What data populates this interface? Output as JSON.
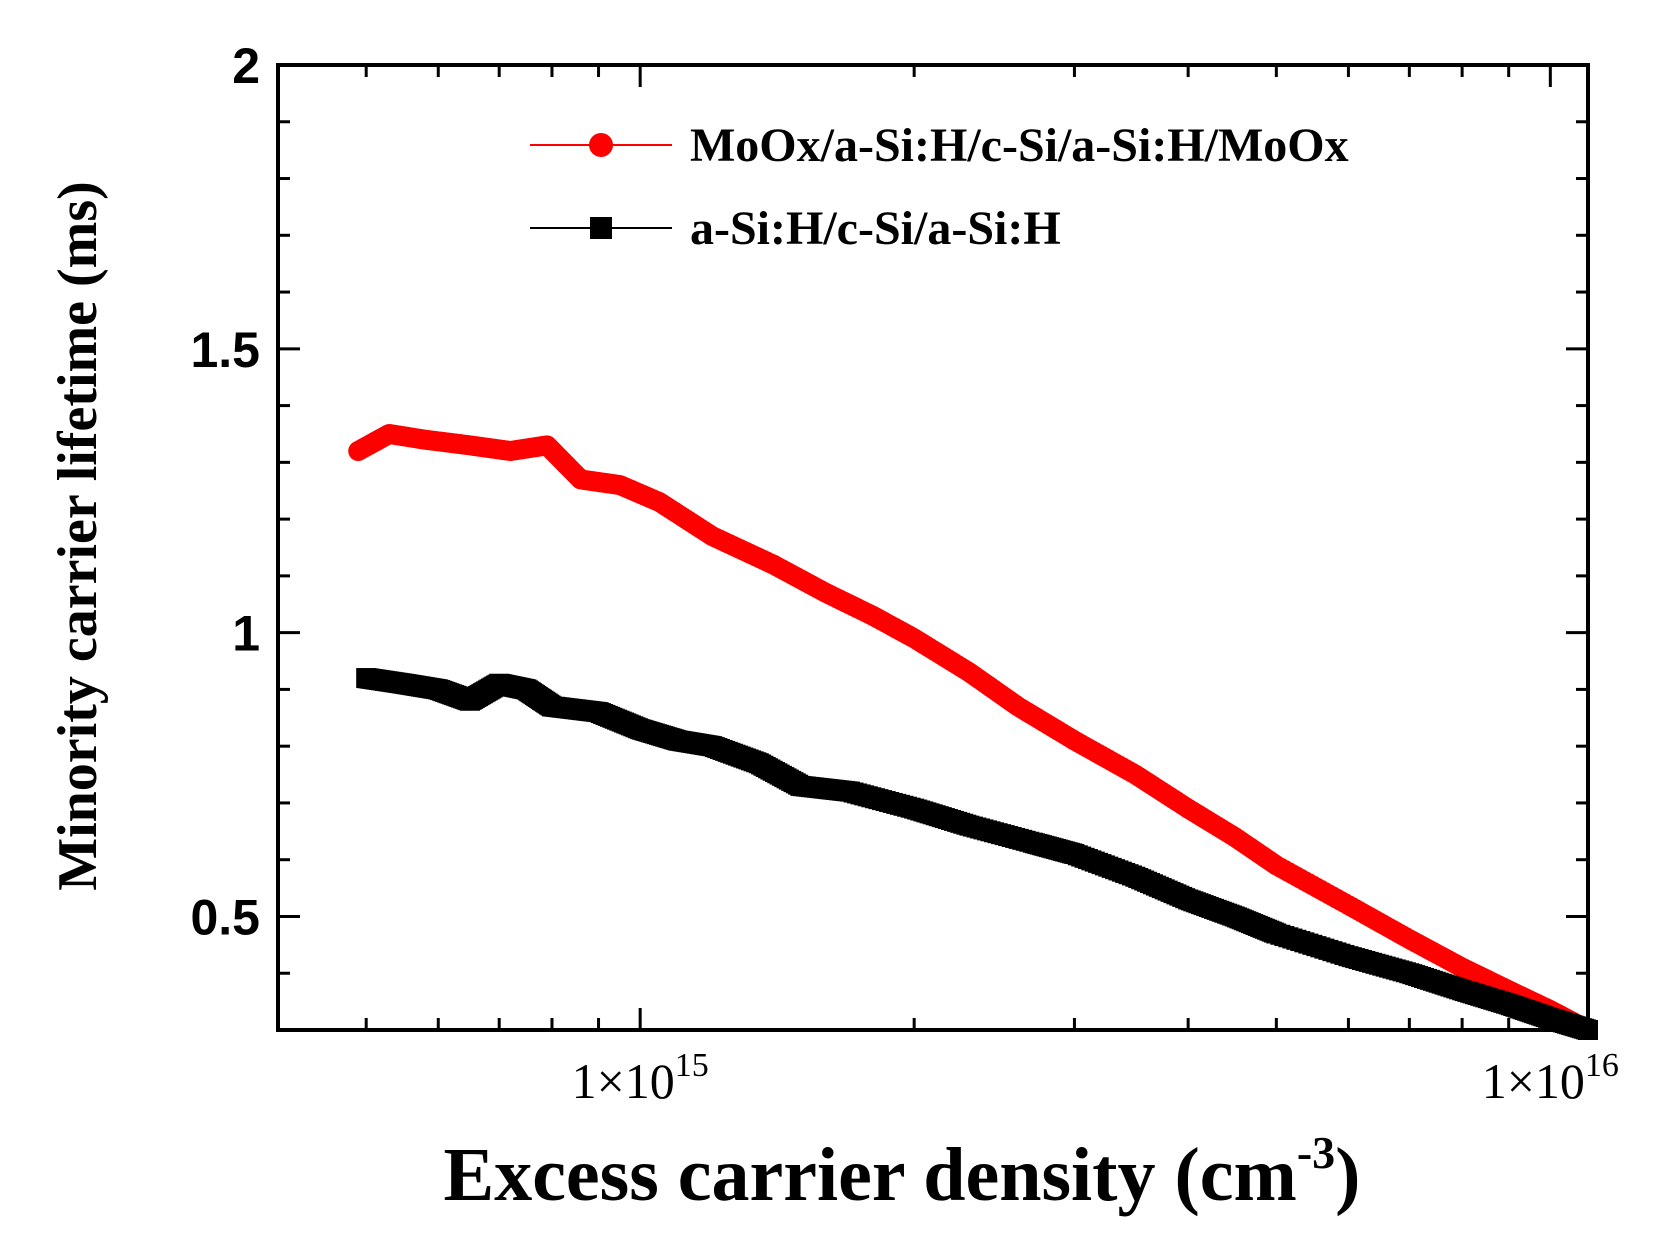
{
  "chart_data": {
    "type": "scatter",
    "xscale": "log",
    "xlim": [
      400000000000000.0,
      1.1e+16
    ],
    "ylim": [
      0.3,
      2
    ],
    "xticks": [
      {
        "value": 1000000000000000.0,
        "label_base": "1×10",
        "label_exp": "15"
      },
      {
        "value": 1e+16,
        "label_base": "1×10",
        "label_exp": "16"
      }
    ],
    "yticks": [
      {
        "value": 0.5,
        "label": "0.5"
      },
      {
        "value": 1,
        "label": "1"
      },
      {
        "value": 1.5,
        "label": "1.5"
      },
      {
        "value": 2,
        "label": "2"
      }
    ],
    "xlabel_main": "Excess carrier density (cm",
    "xlabel_sup": "-3",
    "xlabel_end": ")",
    "ylabel": "Minority carrier lifetime (ms)",
    "legend_position": "top-right",
    "series": [
      {
        "name": "MoOx/a-Si:H/c-Si/a-Si:H/MoOx",
        "color": "#ff0000",
        "marker": "circle",
        "x": [
          490000000000000.0,
          530000000000000.0,
          580000000000000.0,
          650000000000000.0,
          720000000000000.0,
          790000000000000.0,
          860000000000000.0,
          950000000000000.0,
          1050000000000000.0,
          1200000000000000.0,
          1400000000000000.0,
          1600000000000000.0,
          1800000000000000.0,
          2000000000000000.0,
          2300000000000000.0,
          2600000000000000.0,
          3000000000000000.0,
          3500000000000000.0,
          4000000000000000.0,
          4500000000000000.0,
          5000000000000000.0,
          6000000000000000.0,
          7000000000000000.0,
          8000000000000000.0,
          9000000000000000.0,
          1e+16,
          1.1e+16
        ],
        "y": [
          1.32,
          1.35,
          1.34,
          1.33,
          1.32,
          1.33,
          1.27,
          1.26,
          1.23,
          1.17,
          1.12,
          1.07,
          1.03,
          0.99,
          0.93,
          0.87,
          0.81,
          0.75,
          0.69,
          0.64,
          0.59,
          0.52,
          0.46,
          0.41,
          0.37,
          0.335,
          0.3
        ]
      },
      {
        "name": "a-Si:H/c-Si/a-Si:H",
        "color": "#000000",
        "marker": "square",
        "x": [
          500000000000000.0,
          550000000000000.0,
          600000000000000.0,
          650000000000000.0,
          700000000000000.0,
          750000000000000.0,
          800000000000000.0,
          900000000000000.0,
          1000000000000000.0,
          1100000000000000.0,
          1200000000000000.0,
          1350000000000000.0,
          1500000000000000.0,
          1700000000000000.0,
          2000000000000000.0,
          2300000000000000.0,
          2700000000000000.0,
          3000000000000000.0,
          3500000000000000.0,
          4000000000000000.0,
          4500000000000000.0,
          5000000000000000.0,
          6000000000000000.0,
          7000000000000000.0,
          8000000000000000.0,
          9000000000000000.0,
          1e+16,
          1.1e+16
        ],
        "y": [
          0.92,
          0.91,
          0.9,
          0.88,
          0.91,
          0.9,
          0.87,
          0.86,
          0.83,
          0.81,
          0.8,
          0.77,
          0.73,
          0.72,
          0.69,
          0.66,
          0.63,
          0.61,
          0.57,
          0.53,
          0.5,
          0.47,
          0.43,
          0.4,
          0.37,
          0.345,
          0.32,
          0.3
        ]
      }
    ]
  }
}
